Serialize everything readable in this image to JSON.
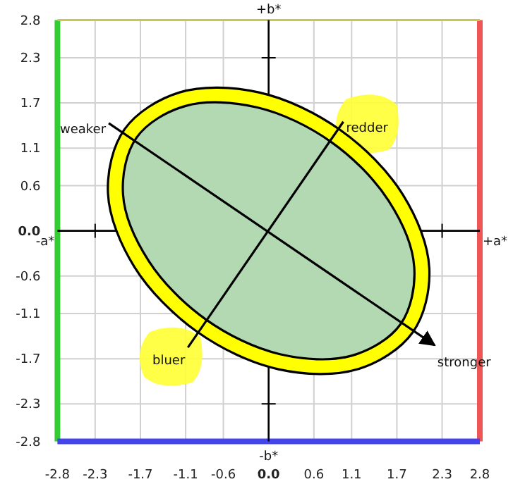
{
  "chart_data": {
    "type": "line",
    "xlim": [
      -2.8,
      2.8
    ],
    "ylim": [
      -2.8,
      2.8
    ],
    "xticks": [
      -2.8,
      -2.3,
      -1.7,
      -1.1,
      -0.6,
      {
        "value": 0,
        "label": "0.0"
      },
      0.6,
      1.1,
      1.7,
      2.3,
      2.8
    ],
    "yticks": [
      -2.8,
      -2.3,
      -1.7,
      -1.1,
      -0.6,
      {
        "value": 0,
        "label": "0.0"
      },
      0.6,
      1.1,
      1.7,
      2.3,
      2.8
    ],
    "grid": true,
    "series": [
      {
        "type": "area",
        "color": "#ffff00",
        "x": [
          1.91,
          2.13,
          1.78,
          0.95,
          -0.13,
          -1.18,
          -1.91,
          -2.13,
          -1.78,
          -0.95,
          0.13,
          1.18
        ],
        "values": [
          -1.35,
          -0.5,
          0.48,
          1.34,
          1.84,
          1.84,
          1.35,
          0.5,
          -0.48,
          -1.34,
          -1.84,
          -1.84
        ]
      },
      {
        "type": "area",
        "color": "#b3d9b3",
        "x": [
          1.75,
          1.93,
          1.59,
          0.83,
          -0.15,
          -1.1,
          -1.75,
          -1.93,
          -1.59,
          -0.83,
          0.15,
          1.1
        ],
        "values": [
          -1.24,
          -0.48,
          0.4,
          1.18,
          1.64,
          1.66,
          1.24,
          0.48,
          -0.4,
          -1.18,
          -1.64,
          -1.66
        ]
      },
      {
        "color": "#000000",
        "x": [
          -2.12,
          2.2
        ],
        "values": [
          1.43,
          -1.52
        ]
      },
      {
        "color": "#000000",
        "x": [
          -1.07,
          0.99
        ],
        "values": [
          -1.55,
          1.45
        ]
      }
    ],
    "annotations": [
      {
        "text": "weaker",
        "x": -2.12,
        "y": 1.43
      },
      {
        "text": "redder",
        "x": 0.99,
        "y": 1.45
      },
      {
        "text": "bluer",
        "x": -1.07,
        "y": -1.55
      },
      {
        "text": "stronger",
        "x": 2.2,
        "y": -1.52
      },
      "+b*",
      "-b*",
      "-a*",
      "+a*"
    ]
  }
}
